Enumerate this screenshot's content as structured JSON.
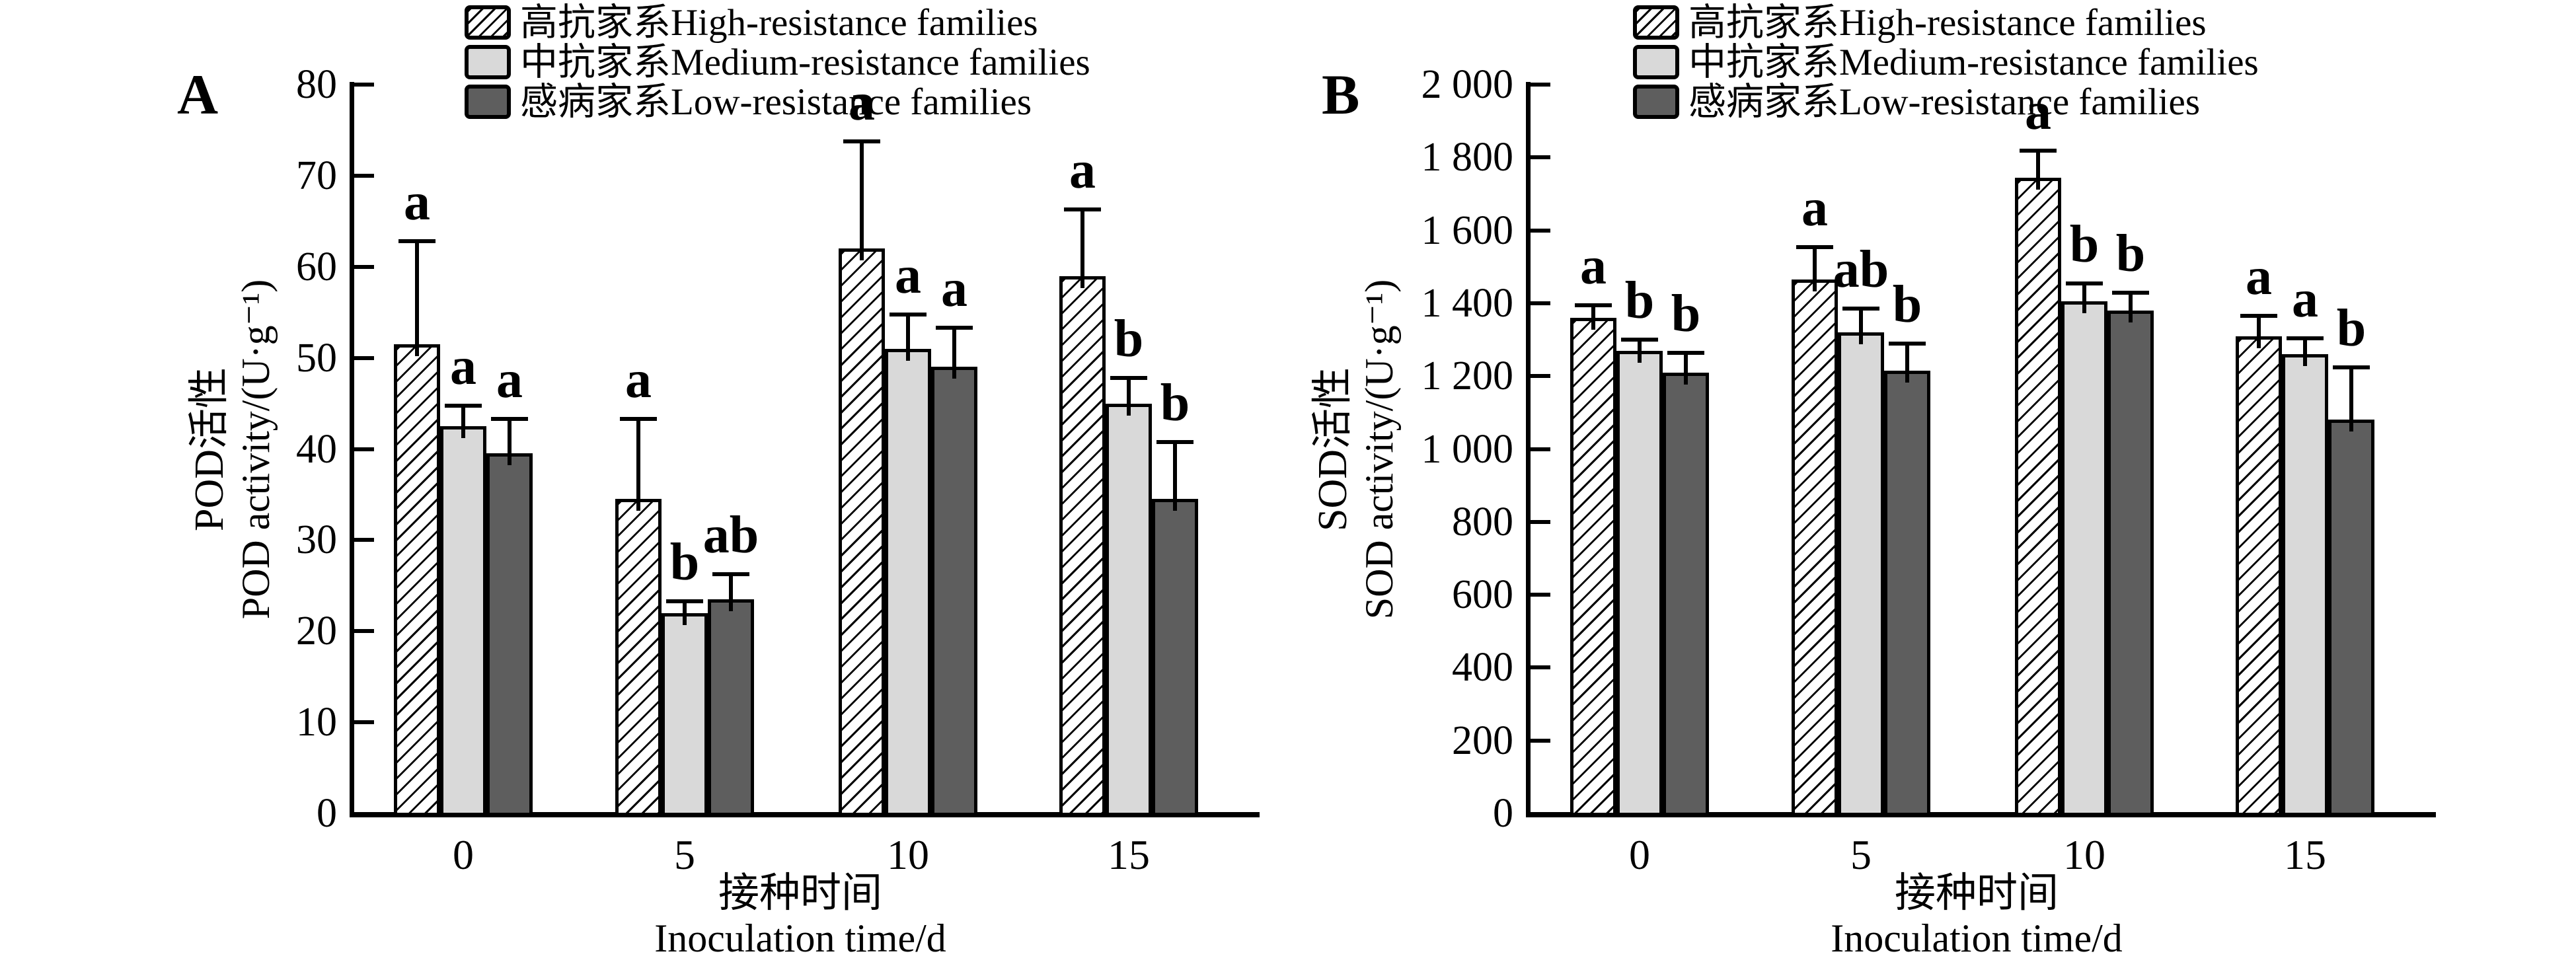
{
  "figure": {
    "background": "#ffffff",
    "text_color": "#000000",
    "legend_items": [
      {
        "key": "hatched",
        "label": "高抗家系High-resistance families"
      },
      {
        "key": "medium",
        "label": "中抗家系Medium-resistance families"
      },
      {
        "key": "low",
        "label": "感病家系Low-resistance families"
      }
    ],
    "colors": {
      "high_fill": "#ffffff",
      "hatch_line": "#000000",
      "medium_fill": "#d9d9d9",
      "low_fill": "#5e5e5e",
      "stroke": "#000000"
    }
  },
  "chart_data": [
    {
      "type": "bar",
      "panel_label": "A",
      "ylabel_cn": "POD活性",
      "ylabel_en": "POD activity/(U·g⁻¹)",
      "xlabel_cn": "接种时间",
      "xlabel_en": "Inoculation time/d",
      "ylim": [
        0,
        80
      ],
      "ytick_step": 10,
      "ytick_labels": [
        "0",
        "10",
        "20",
        "30",
        "40",
        "50",
        "60",
        "70",
        "80"
      ],
      "categories": [
        "0",
        "5",
        "10",
        "15"
      ],
      "grid": false,
      "legend_position": "top",
      "error_bars": "upper",
      "series": [
        {
          "name": "高抗家系High-resistance families",
          "style": "hatched",
          "values": [
            51.5,
            34.5,
            62,
            59
          ],
          "errors": [
            11.5,
            9,
            12,
            7.5
          ],
          "sig_letters": [
            "a",
            "a",
            "a",
            "a"
          ]
        },
        {
          "name": "中抗家系Medium-resistance families",
          "style": "medium",
          "values": [
            42.5,
            22,
            51,
            45
          ],
          "errors": [
            2.5,
            1.5,
            4,
            3
          ],
          "sig_letters": [
            "a",
            "b",
            "a",
            "b"
          ]
        },
        {
          "name": "感病家系Low-resistance families",
          "style": "low",
          "values": [
            39.5,
            23.5,
            49,
            34.5
          ],
          "errors": [
            4,
            3,
            4.5,
            6.5
          ],
          "sig_letters": [
            "a",
            "ab",
            "a",
            "b"
          ]
        }
      ]
    },
    {
      "type": "bar",
      "panel_label": "B",
      "ylabel_cn": "SOD活性",
      "ylabel_en": "SOD activity/(U·g⁻¹)",
      "xlabel_cn": "接种时间",
      "xlabel_en": "Inoculation time/d",
      "ylim": [
        0,
        2000
      ],
      "ytick_step": 200,
      "ytick_labels": [
        "0",
        "200",
        "400",
        "600",
        "800",
        "1 000",
        "1 200",
        "1 400",
        "1 600",
        "1 800",
        "2 000"
      ],
      "categories": [
        "0",
        "5",
        "10",
        "15"
      ],
      "grid": false,
      "legend_position": "top",
      "error_bars": "upper",
      "series": [
        {
          "name": "高抗家系High-resistance families",
          "style": "hatched",
          "values": [
            1360,
            1465,
            1745,
            1310
          ],
          "errors": [
            40,
            95,
            80,
            60
          ],
          "sig_letters": [
            "a",
            "a",
            "a",
            "a"
          ]
        },
        {
          "name": "中抗家系Medium-resistance families",
          "style": "medium",
          "values": [
            1270,
            1320,
            1405,
            1260
          ],
          "errors": [
            35,
            70,
            55,
            50
          ],
          "sig_letters": [
            "b",
            "ab",
            "b",
            "a"
          ]
        },
        {
          "name": "感病家系Low-resistance families",
          "style": "low",
          "values": [
            1210,
            1215,
            1380,
            1080
          ],
          "errors": [
            60,
            80,
            55,
            150
          ],
          "sig_letters": [
            "b",
            "b",
            "b",
            "b"
          ]
        }
      ]
    }
  ]
}
